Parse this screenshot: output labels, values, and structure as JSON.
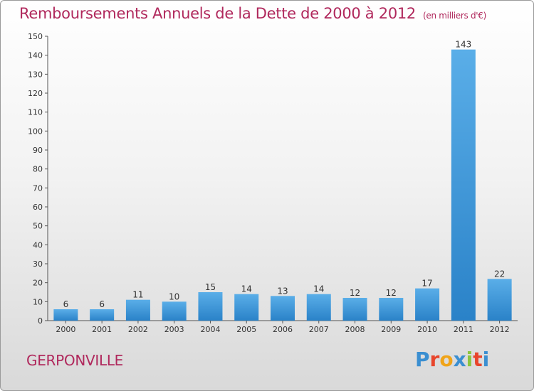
{
  "header": {
    "title": "Remboursements Annuels de la Dette de 2000 à 2012",
    "unit": "(en milliers d'€)"
  },
  "footer": {
    "commune": "GERPONVILLE",
    "logo_text": "Proxiti"
  },
  "colors": {
    "title": "#b0285c",
    "bar_light": "#5aaee8",
    "bar_dark": "#2a82c8",
    "logo_letters": [
      "#3b8fd1",
      "#e8452c",
      "#f0a419",
      "#3b8fd1",
      "#8cc63f",
      "#e8452c",
      "#3b8fd1"
    ]
  },
  "chart_data": {
    "type": "bar",
    "title": "Remboursements Annuels de la Dette de 2000 à 2012",
    "xlabel": "",
    "ylabel": "",
    "categories": [
      "2000",
      "2001",
      "2002",
      "2003",
      "2004",
      "2005",
      "2006",
      "2007",
      "2008",
      "2009",
      "2010",
      "2011",
      "2012"
    ],
    "values": [
      6,
      6,
      11,
      10,
      15,
      14,
      13,
      14,
      12,
      12,
      17,
      143,
      22
    ],
    "ylim": [
      0,
      150
    ],
    "yticks": [
      0,
      10,
      20,
      30,
      40,
      50,
      60,
      70,
      80,
      90,
      100,
      110,
      120,
      130,
      140,
      150
    ],
    "grid": false,
    "data_labels": true
  }
}
